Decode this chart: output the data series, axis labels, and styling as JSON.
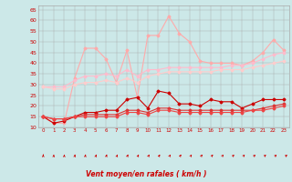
{
  "xlabel": "Vent moyen/en rafales ( km/h )",
  "bg_color": "#cce8e8",
  "grid_color": "#aaaaaa",
  "x": [
    0,
    1,
    2,
    3,
    4,
    5,
    6,
    7,
    8,
    9,
    10,
    11,
    12,
    13,
    14,
    15,
    16,
    17,
    18,
    19,
    20,
    21,
    22,
    23
  ],
  "ylim": [
    10,
    67
  ],
  "yticks": [
    10,
    15,
    20,
    25,
    30,
    35,
    40,
    45,
    50,
    55,
    60,
    65
  ],
  "series": [
    {
      "name": "rafales_max",
      "color": "#ffaaaa",
      "lw": 0.8,
      "marker": "D",
      "ms": 1.5,
      "y": [
        15,
        12,
        12,
        33,
        47,
        47,
        42,
        31,
        46,
        24,
        53,
        53,
        62,
        54,
        50,
        41,
        40,
        40,
        40,
        39,
        41,
        45,
        51,
        46
      ]
    },
    {
      "name": "rafales_moy_high",
      "color": "#ffbbcc",
      "lw": 0.8,
      "marker": "D",
      "ms": 1.5,
      "y": [
        29,
        29,
        29,
        32,
        34,
        34,
        35,
        34,
        37,
        34,
        37,
        37,
        38,
        38,
        38,
        38,
        38,
        38,
        39,
        39,
        40,
        42,
        44,
        45
      ]
    },
    {
      "name": "rafales_moy_low",
      "color": "#ffcccc",
      "lw": 0.8,
      "marker": "D",
      "ms": 1.5,
      "y": [
        29,
        28,
        28,
        30,
        31,
        31,
        32,
        31,
        33,
        31,
        34,
        35,
        36,
        36,
        36,
        36,
        36,
        37,
        37,
        37,
        38,
        39,
        40,
        41
      ]
    },
    {
      "name": "vent_max",
      "color": "#cc0000",
      "lw": 0.8,
      "marker": "D",
      "ms": 1.5,
      "y": [
        15,
        12,
        13,
        15,
        17,
        17,
        18,
        18,
        23,
        24,
        19,
        27,
        26,
        21,
        21,
        20,
        23,
        22,
        22,
        19,
        21,
        23,
        23,
        23
      ]
    },
    {
      "name": "vent_moy_high",
      "color": "#dd3333",
      "lw": 0.8,
      "marker": "D",
      "ms": 1.5,
      "y": [
        15,
        14,
        14,
        15,
        16,
        16,
        16,
        16,
        18,
        18,
        17,
        19,
        19,
        18,
        18,
        18,
        18,
        18,
        18,
        18,
        18,
        19,
        20,
        21
      ]
    },
    {
      "name": "vent_moy_low",
      "color": "#ee4444",
      "lw": 0.8,
      "marker": "D",
      "ms": 1.5,
      "y": [
        15,
        14,
        14,
        15,
        15,
        15,
        15,
        15,
        17,
        17,
        16,
        18,
        18,
        17,
        17,
        17,
        17,
        17,
        17,
        17,
        18,
        18,
        19,
        20
      ]
    }
  ],
  "red_color": "#cc0000",
  "figsize": [
    3.2,
    2.0
  ],
  "dpi": 100
}
